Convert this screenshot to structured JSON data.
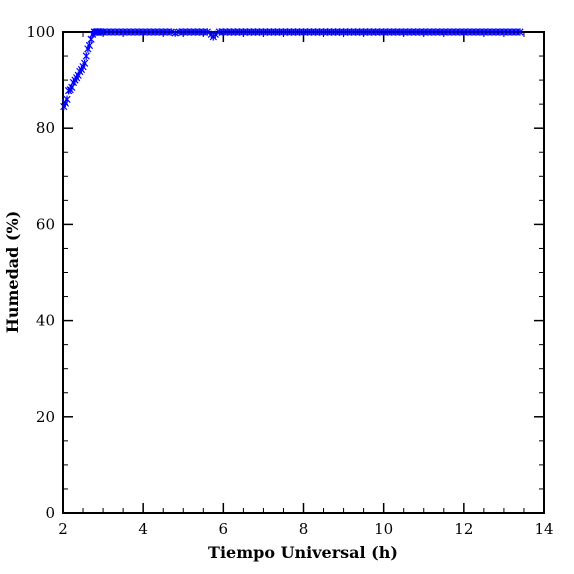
{
  "chart_data": {
    "type": "scatter",
    "title": "",
    "xlabel": "Tiempo Universal (h)",
    "ylabel": "Humedad (%)",
    "xlim": [
      2,
      14
    ],
    "ylim": [
      0,
      100
    ],
    "x_ticks": [
      2,
      4,
      6,
      8,
      10,
      12,
      14
    ],
    "y_ticks": [
      0,
      20,
      40,
      60,
      80,
      100
    ],
    "x_tick_labels": [
      "2",
      "4",
      "6",
      "8",
      "10",
      "12",
      "14"
    ],
    "y_tick_labels": [
      "0",
      "20",
      "40",
      "60",
      "80",
      "100"
    ],
    "grid": false,
    "marker": "x",
    "colors": {
      "series": "#0000ff",
      "axes": "#000000",
      "background": "#ffffff"
    },
    "series": [
      {
        "x": [
          2.02,
          2.06,
          2.1,
          2.14,
          2.18,
          2.22,
          2.26,
          2.3,
          2.34,
          2.38,
          2.42,
          2.46,
          2.5,
          2.54,
          2.58,
          2.62,
          2.66,
          2.7,
          2.74,
          2.78,
          2.82,
          2.86,
          2.9,
          2.95,
          3.0,
          3.1,
          3.2,
          3.3,
          3.4,
          3.5,
          3.6,
          3.7,
          3.8,
          3.9,
          4.0,
          4.1,
          4.2,
          4.3,
          4.4,
          4.5,
          4.6,
          4.7,
          4.8,
          4.9,
          5.0,
          5.1,
          5.2,
          5.3,
          5.4,
          5.5,
          5.6,
          5.7,
          5.75,
          5.8,
          5.9,
          6.0,
          6.1,
          6.2,
          6.3,
          6.4,
          6.5,
          6.6,
          6.7,
          6.8,
          6.9,
          7.0,
          7.1,
          7.2,
          7.3,
          7.4,
          7.5,
          7.6,
          7.7,
          7.8,
          7.9,
          8.0,
          8.1,
          8.2,
          8.3,
          8.4,
          8.5,
          8.6,
          8.7,
          8.8,
          8.9,
          9.0,
          9.1,
          9.2,
          9.3,
          9.4,
          9.5,
          9.6,
          9.7,
          9.8,
          9.9,
          10.0,
          10.1,
          10.2,
          10.3,
          10.4,
          10.5,
          10.6,
          10.7,
          10.8,
          10.9,
          11.0,
          11.1,
          11.2,
          11.3,
          11.4,
          11.5,
          11.6,
          11.7,
          11.8,
          11.9,
          12.0,
          12.1,
          12.2,
          12.3,
          12.4,
          12.5,
          12.6,
          12.7,
          12.8,
          12.9,
          13.0,
          13.1,
          13.2,
          13.3,
          13.4
        ],
        "y": [
          84.5,
          85.2,
          86.0,
          87.8,
          88.0,
          88.5,
          89.5,
          90.0,
          90.5,
          91.0,
          91.8,
          92.2,
          92.8,
          93.5,
          95.0,
          96.5,
          97.2,
          98.5,
          99.5,
          100,
          100,
          100,
          100,
          100,
          100,
          100,
          100,
          100,
          100,
          100,
          100,
          100,
          100,
          100,
          100,
          100,
          100,
          100,
          100,
          100,
          100,
          100,
          99.8,
          100,
          100,
          100,
          100,
          100,
          100,
          100,
          100,
          99.5,
          99.0,
          99.5,
          100,
          100,
          100,
          100,
          100,
          100,
          100,
          100,
          100,
          100,
          100,
          100,
          100,
          100,
          100,
          100,
          100,
          100,
          100,
          100,
          100,
          100,
          100,
          100,
          100,
          100,
          100,
          100,
          100,
          100,
          100,
          100,
          100,
          100,
          100,
          100,
          100,
          100,
          100,
          100,
          100,
          100,
          100,
          100,
          100,
          100,
          100,
          100,
          100,
          100,
          100,
          100,
          100,
          100,
          100,
          100,
          100,
          100,
          100,
          100,
          100,
          100,
          100,
          100,
          100,
          100,
          100,
          100,
          100,
          100,
          100,
          100,
          100,
          100,
          100,
          100
        ]
      }
    ]
  }
}
